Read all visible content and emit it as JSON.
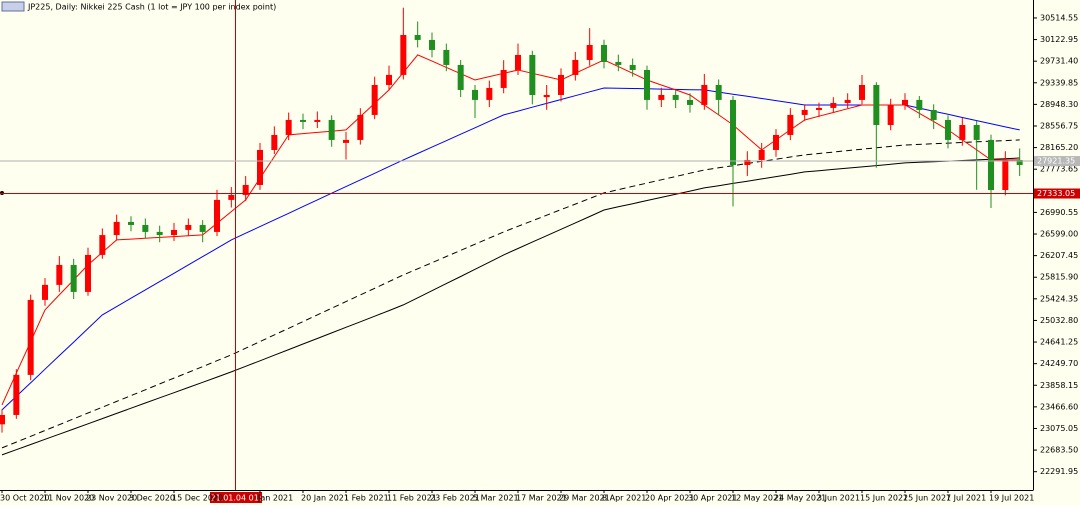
{
  "chart_data": {
    "type": "candlestick",
    "title": "JP225, Daily: Nikkei 225 Cash (1 lot = JPY 100 per index point)",
    "categories": [
      "30 Oct 2020",
      null,
      null,
      "11 Nov 2020",
      null,
      null,
      "23 Nov 2020",
      null,
      null,
      "3 Dec 2020",
      null,
      null,
      "15 Dec 2020",
      null,
      null,
      null,
      null,
      null,
      "Jan 2021",
      null,
      null,
      "20 Jan 2021",
      null,
      null,
      "1 Feb 2021",
      null,
      null,
      "11 Feb 2021",
      null,
      null,
      "23 Feb 2021",
      null,
      null,
      "5 Mar 2021",
      null,
      null,
      "17 Mar 2021",
      null,
      null,
      "29 Mar 2021",
      null,
      null,
      "8 Apr 2021",
      null,
      null,
      "20 Apr 2021",
      null,
      null,
      "30 Apr 2021",
      null,
      null,
      "12 May 2021",
      null,
      null,
      "24 May 2021",
      null,
      null,
      "3 Jun 2021",
      null,
      null,
      "15 Jun 2021",
      null,
      null,
      "25 Jun 2021",
      null,
      null,
      "7 Jul 2021",
      null,
      null,
      "19 Jul 2021",
      null,
      null
    ],
    "open": [
      23150,
      23320,
      24046,
      25405,
      25677,
      26039,
      25550,
      26220,
      26580,
      26818,
      26763,
      26637,
      26580,
      26673,
      26763,
      26637,
      27217,
      27307,
      27488,
      28122,
      28394,
      28666,
      28630,
      28666,
      28250,
      28304,
      28757,
      29300,
      29482,
      30206,
      30116,
      29935,
      29663,
      29210,
      29029,
      29246,
      29572,
      29844,
      29080,
      29119,
      29482,
      29753,
      30025,
      29717,
      29663,
      29572,
      29029,
      29119,
      29029,
      28938,
      29300,
      29029,
      27850,
      27941,
      28122,
      28394,
      28757,
      28847,
      28884,
      28974,
      29029,
      29300,
      28575,
      28938,
      29029,
      28847,
      28666,
      28304,
      28575,
      28304,
      27397,
      27941
    ],
    "high": [
      23420,
      24150,
      25500,
      25800,
      26200,
      26150,
      26350,
      26700,
      26950,
      26920,
      26880,
      26750,
      26800,
      26880,
      26850,
      27400,
      27450,
      27650,
      28250,
      28550,
      28800,
      28780,
      28820,
      28750,
      28450,
      28880,
      29450,
      29650,
      30700,
      30450,
      30250,
      30050,
      29750,
      29300,
      29380,
      29750,
      30050,
      29920,
      29300,
      29600,
      29900,
      30330,
      30120,
      29850,
      29780,
      29650,
      29250,
      29200,
      29150,
      29500,
      29400,
      29100,
      28100,
      28250,
      28500,
      28880,
      28950,
      28980,
      29080,
      29150,
      29480,
      29350,
      29050,
      29150,
      29100,
      28950,
      28750,
      28700,
      28650,
      28400,
      28100,
      28150
    ],
    "low": [
      23000,
      23250,
      23950,
      25300,
      25550,
      25420,
      25480,
      26150,
      26480,
      26650,
      26520,
      26450,
      26470,
      26560,
      26450,
      26560,
      27080,
      27200,
      27400,
      28050,
      28300,
      28500,
      28520,
      28180,
      27950,
      28220,
      28680,
      29200,
      29400,
      29980,
      29800,
      29550,
      29080,
      28700,
      28900,
      29150,
      29480,
      28950,
      28850,
      29000,
      29380,
      29650,
      29600,
      29550,
      29450,
      28850,
      28900,
      28880,
      28800,
      28850,
      28750,
      27100,
      27650,
      27800,
      28000,
      28300,
      28650,
      28720,
      28800,
      28880,
      28950,
      27800,
      28480,
      28850,
      28700,
      28500,
      28150,
      28200,
      27400,
      27071,
      27300,
      27650
    ],
    "close": [
      23320,
      24046,
      25405,
      25677,
      26039,
      25550,
      26220,
      26580,
      26818,
      26763,
      26637,
      26580,
      26673,
      26763,
      26637,
      27217,
      27307,
      27488,
      28122,
      28394,
      28666,
      28630,
      28666,
      28304,
      28304,
      28757,
      29300,
      29482,
      30206,
      30116,
      29935,
      29663,
      29210,
      29029,
      29246,
      29572,
      29844,
      29119,
      29119,
      29482,
      29753,
      30025,
      29717,
      29663,
      29572,
      29029,
      29119,
      29029,
      28938,
      29300,
      29029,
      27850,
      27941,
      28122,
      28394,
      28757,
      28847,
      28884,
      28974,
      29029,
      29300,
      28575,
      28938,
      29029,
      28847,
      28666,
      28304,
      28575,
      28304,
      27397,
      27941,
      27850
    ],
    "bull_color": "#ff0000",
    "bear_color": "#1f8f1f",
    "series": [
      {
        "color": "#000000",
        "style": "solid",
        "values": [
          22596,
          22690,
          22784,
          22878,
          22972,
          23066,
          23160,
          23254,
          23348,
          23442,
          23536,
          23630,
          23724,
          23818,
          23912,
          24006,
          24100,
          24201,
          24302,
          24403,
          24504,
          24605,
          24706,
          24807,
          24908,
          25009,
          25110,
          25211,
          25314,
          25443,
          25572,
          25701,
          25830,
          25959,
          26088,
          26220,
          26336,
          26452,
          26568,
          26684,
          26800,
          26916,
          27035,
          27092,
          27149,
          27206,
          27263,
          27320,
          27377,
          27434,
          27475,
          27516,
          27557,
          27598,
          27639,
          27680,
          27724,
          27747,
          27770,
          27793,
          27816,
          27839,
          27862,
          27887,
          27898,
          27909,
          27920,
          27931,
          27942,
          27953,
          27964,
          27977
        ]
      },
      {
        "color": "#000000",
        "style": "dashed",
        "values": [
          22723,
          22828,
          22934,
          23039,
          23144,
          23250,
          23355,
          23460,
          23566,
          23671,
          23776,
          23882,
          23987,
          24092,
          24197,
          24303,
          24408,
          24529,
          24650,
          24771,
          24891,
          25012,
          25133,
          25254,
          25375,
          25496,
          25616,
          25737,
          25858,
          25969,
          26080,
          26191,
          26303,
          26414,
          26525,
          26637,
          26738,
          26839,
          26940,
          27041,
          27142,
          27243,
          27344,
          27403,
          27463,
          27522,
          27582,
          27641,
          27701,
          27760,
          27799,
          27838,
          27877,
          27916,
          27955,
          27994,
          28032,
          28058,
          28084,
          28110,
          28136,
          28161,
          28187,
          28213,
          28224,
          28235,
          28247,
          28258,
          28270,
          28281,
          28292,
          28304
        ]
      },
      {
        "color": "#0000ff",
        "style": "solid",
        "values": [
          23411,
          23657,
          23903,
          24149,
          24395,
          24641,
          24887,
          25133,
          25284,
          25435,
          25586,
          25737,
          25888,
          26039,
          26190,
          26341,
          26492,
          26613,
          26734,
          26855,
          26975,
          27096,
          27217,
          27338,
          27459,
          27580,
          27700,
          27821,
          27942,
          28058,
          28175,
          28291,
          28408,
          28524,
          28641,
          28757,
          28827,
          28897,
          28967,
          29036,
          29106,
          29176,
          29246,
          29241,
          29236,
          29231,
          29226,
          29220,
          29215,
          29210,
          29171,
          29132,
          29094,
          29055,
          29016,
          28977,
          28938,
          28938,
          28938,
          28938,
          28938,
          28938,
          28938,
          28938,
          28881,
          28825,
          28768,
          28711,
          28655,
          28598,
          28541,
          28485
        ]
      },
      {
        "color": "#ff0000",
        "style": "solid",
        "values": [
          23502,
          24076,
          24650,
          25224,
          25496,
          25767,
          26039,
          26266,
          26492,
          26507,
          26522,
          26537,
          26553,
          26568,
          26583,
          26794,
          27006,
          27217,
          27610,
          28002,
          28395,
          28418,
          28440,
          28463,
          28485,
          28727,
          28968,
          29210,
          29528,
          29845,
          29732,
          29618,
          29505,
          29391,
          29452,
          29512,
          29572,
          29512,
          29452,
          29391,
          29512,
          29633,
          29754,
          29633,
          29512,
          29391,
          29300,
          29210,
          29119,
          28938,
          28757,
          28576,
          28350,
          28123,
          28304,
          28485,
          28666,
          28734,
          28802,
          28870,
          28938,
          28938,
          28938,
          28938,
          28787,
          28636,
          28485,
          28304,
          28123,
          27942,
          27942,
          27942
        ]
      }
    ],
    "ylim": [
      21960,
      30840
    ],
    "yticks": [
      22291.95,
      {
        "value": 22683.5,
        "label": "22683.50"
      },
      23075.05,
      {
        "value": 23466.6,
        "label": "23466.60"
      },
      23858.15,
      {
        "value": 24249.7,
        "label": "24249.70"
      },
      24641.25,
      {
        "value": 25032.8,
        "label": "25032.80"
      },
      25424.35,
      {
        "value": 25815.9,
        "label": "25815.90"
      },
      26207.45,
      {
        "value": 26599,
        "label": "26599.00"
      },
      26990.55,
      27773.65,
      {
        "value": 28165.2,
        "label": "28165.20"
      },
      28556.75,
      {
        "value": 28948.3,
        "label": "28948.30"
      },
      29339.85,
      {
        "value": 29731.4,
        "label": "29731.40"
      },
      30122.95,
      30514.55
    ],
    "bid_line": 27921.35,
    "crosshair": {
      "time_label": "2021.01.04 01:00",
      "price": 27333.05
    }
  }
}
